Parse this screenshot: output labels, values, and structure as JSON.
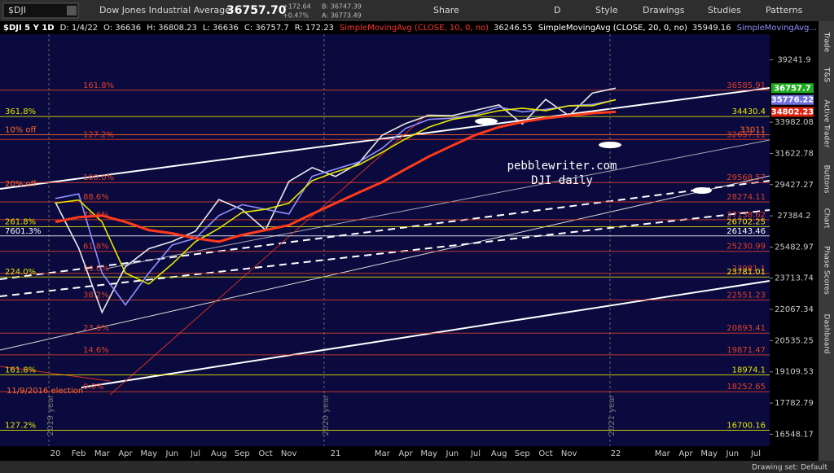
{
  "toolbar": {
    "symbol": "$DJI",
    "description": "Dow Jones Industrial Average",
    "last": "36757.70",
    "change": "+172.64",
    "change_pct": "+0.47%",
    "bid": "B: 36747.39",
    "ask": "A: 36773.49",
    "buttons": [
      "Share",
      "D",
      "Style",
      "Drawings",
      "Studies",
      "Patterns"
    ]
  },
  "header": {
    "title": "$DJI 5 Y 1D",
    "fields": [
      "D: 1/4/22",
      "O: 36636",
      "H: 36808.23",
      "L: 36636",
      "C: 36757.7",
      "R: 172.23"
    ],
    "studies": [
      {
        "name": "SimpleMovingAvg (CLOSE, 10, 0, no)",
        "value": "36246.55",
        "color": "#ff3030"
      },
      {
        "name": "SimpleMovingAvg (CLOSE, 20, 0, no)",
        "value": "35949.16",
        "color": "#ffffff"
      },
      {
        "name": "SimpleMovingAvg...",
        "color": "#8f8fff"
      }
    ]
  },
  "chart_data": {
    "type": "line",
    "log": true,
    "ylim": [
      16100,
      41630
    ],
    "yticks": [
      39241.9,
      33982.08,
      31622.78,
      29427.27,
      27384.2,
      25482.97,
      23713.74,
      22067.34,
      20535.25,
      19109.53,
      17782.79,
      16548.17
    ],
    "categories": [
      "20",
      "Feb",
      "Mar",
      "Apr",
      "May",
      "Jun",
      "Jul",
      "Aug",
      "Sep",
      "Oct",
      "Nov",
      null,
      "21",
      null,
      "Mar",
      "Apr",
      "May",
      "Jun",
      "Jul",
      "Aug",
      "Sep",
      "Oct",
      "Nov",
      null,
      "22",
      null,
      "Mar",
      "Apr",
      "May",
      "Jun",
      "Jul"
    ],
    "series": [
      {
        "color": "#e8e8e8",
        "values": [
          28256,
          25409,
          21917,
          24346,
          25383,
          25813,
          26428,
          28430,
          27782,
          26502,
          29639,
          30606,
          29983,
          30932,
          32982,
          33875,
          34529,
          34503,
          34935,
          35361,
          33844,
          35820,
          34484,
          36338,
          36757.7,
          null,
          null,
          null,
          null,
          null,
          null
        ]
      },
      {
        "color": "#8f8fff",
        "values": [
          28500,
          28800,
          24000,
          22300,
          24000,
          25600,
          26000,
          27400,
          28100,
          27800,
          27500,
          30000,
          30500,
          31000,
          32000,
          33500,
          34200,
          34300,
          34600,
          35200,
          34800,
          35000,
          35300,
          35400,
          35776.22,
          null,
          null,
          null,
          null,
          null,
          null
        ]
      },
      {
        "color": "#e6e600",
        "values": [
          28200,
          28400,
          27000,
          24000,
          23400,
          24500,
          25800,
          26600,
          27600,
          27800,
          28200,
          29700,
          30300,
          30800,
          31700,
          32700,
          33600,
          34200,
          34500,
          34900,
          35100,
          34900,
          35300,
          35300,
          35800,
          null,
          null,
          null,
          null,
          null,
          null
        ]
      },
      {
        "color": "#ff3a1a",
        "values": [
          27000,
          27300,
          27400,
          27000,
          26500,
          26300,
          26000,
          25800,
          26200,
          26500,
          26800,
          27500,
          28200,
          28900,
          29600,
          30500,
          31400,
          32200,
          33000,
          33600,
          34000,
          34300,
          34500,
          34700,
          34802.23,
          null,
          null,
          null,
          null,
          null,
          null
        ]
      }
    ],
    "price_tags": [
      {
        "value": 36757.7,
        "color": "#1faa1f"
      },
      {
        "value": 35776.22,
        "color": "#7070e0"
      },
      {
        "value": 34802.23,
        "color": "#e02010"
      }
    ],
    "levels": [
      {
        "value": 36585.91,
        "label": "161.8%",
        "color": "#e0402a"
      },
      {
        "value": 34430.4,
        "label": "361.8%",
        "color": "#e6e600"
      },
      {
        "value": 33011,
        "label": "10% off",
        "color": "#ff6a2a"
      },
      {
        "value": 32657.11,
        "label": "127.2%",
        "color": "#e0402a"
      },
      {
        "value": 29568.57,
        "label": "100.0%",
        "color": "#e0402a"
      },
      {
        "value": 28274.11,
        "label": "88.6%",
        "color": "#e0402a"
      },
      {
        "value": 27138.62,
        "label": "78.6%",
        "color": "#e0402a"
      },
      {
        "value": 26702.25,
        "label": "261.8%",
        "color": "#e6e600"
      },
      {
        "value": 26143.46,
        "label": "7601.3%",
        "color": "#ffffff"
      },
      {
        "value": 25230.99,
        "label": "61.8%",
        "color": "#e0402a"
      },
      {
        "value": 23981.1,
        "label": "50.0%",
        "color": "#e0402a"
      },
      {
        "value": 23781.01,
        "label": "224.0%",
        "color": "#e6e600"
      },
      {
        "value": 22551.23,
        "label": "38.2%",
        "color": "#e0402a"
      },
      {
        "value": 20893.41,
        "label": "23.6%",
        "color": "#e0402a"
      },
      {
        "value": 19871.47,
        "label": "14.6%",
        "color": "#e0402a"
      },
      {
        "value": 18974.1,
        "label": "161.8%",
        "color": "#e6e600"
      },
      {
        "value": 18252.65,
        "label": "0.0%",
        "color": "#e0402a"
      },
      {
        "value": 16700.16,
        "label": "127.2%",
        "color": "#e6e600"
      }
    ],
    "annotations": [
      "pebblewriter.com",
      "DJI daily",
      "20% off",
      "11/9/2016 election",
      "2019 year",
      "2020 year",
      "2021 year"
    ]
  },
  "side_tabs": [
    "Trade",
    "T&S",
    "Active Trader",
    "Buttons",
    "Chart",
    "Phase Scores",
    "Dashboard"
  ],
  "status": "Drawing set: Default"
}
